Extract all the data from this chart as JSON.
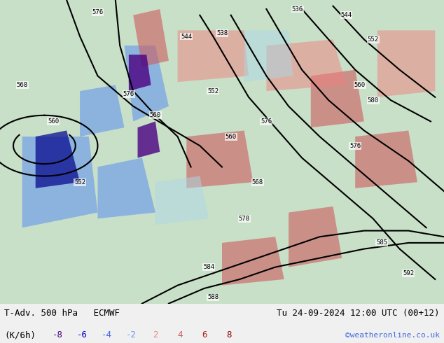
{
  "title_left": "T-Adv. 500 hPa   ECMWF",
  "title_right": "Tu 24-09-2024 12:00 UTC (00+12)",
  "unit_label": "(K/6h)",
  "credit": "©weatheronline.co.uk",
  "legend_values": [
    -8,
    -6,
    -4,
    -2,
    2,
    4,
    6,
    8
  ],
  "legend_colors": [
    "#4b0082",
    "#0000cd",
    "#4169e1",
    "#6495ed",
    "#f08080",
    "#cd5c5c",
    "#b22222",
    "#8b0000"
  ],
  "bg_color": "#f0f0f0",
  "map_bg": "#c8e6c8",
  "bottom_bar_color": "#e8e8e8",
  "figsize": [
    6.34,
    4.9
  ],
  "dpi": 100
}
